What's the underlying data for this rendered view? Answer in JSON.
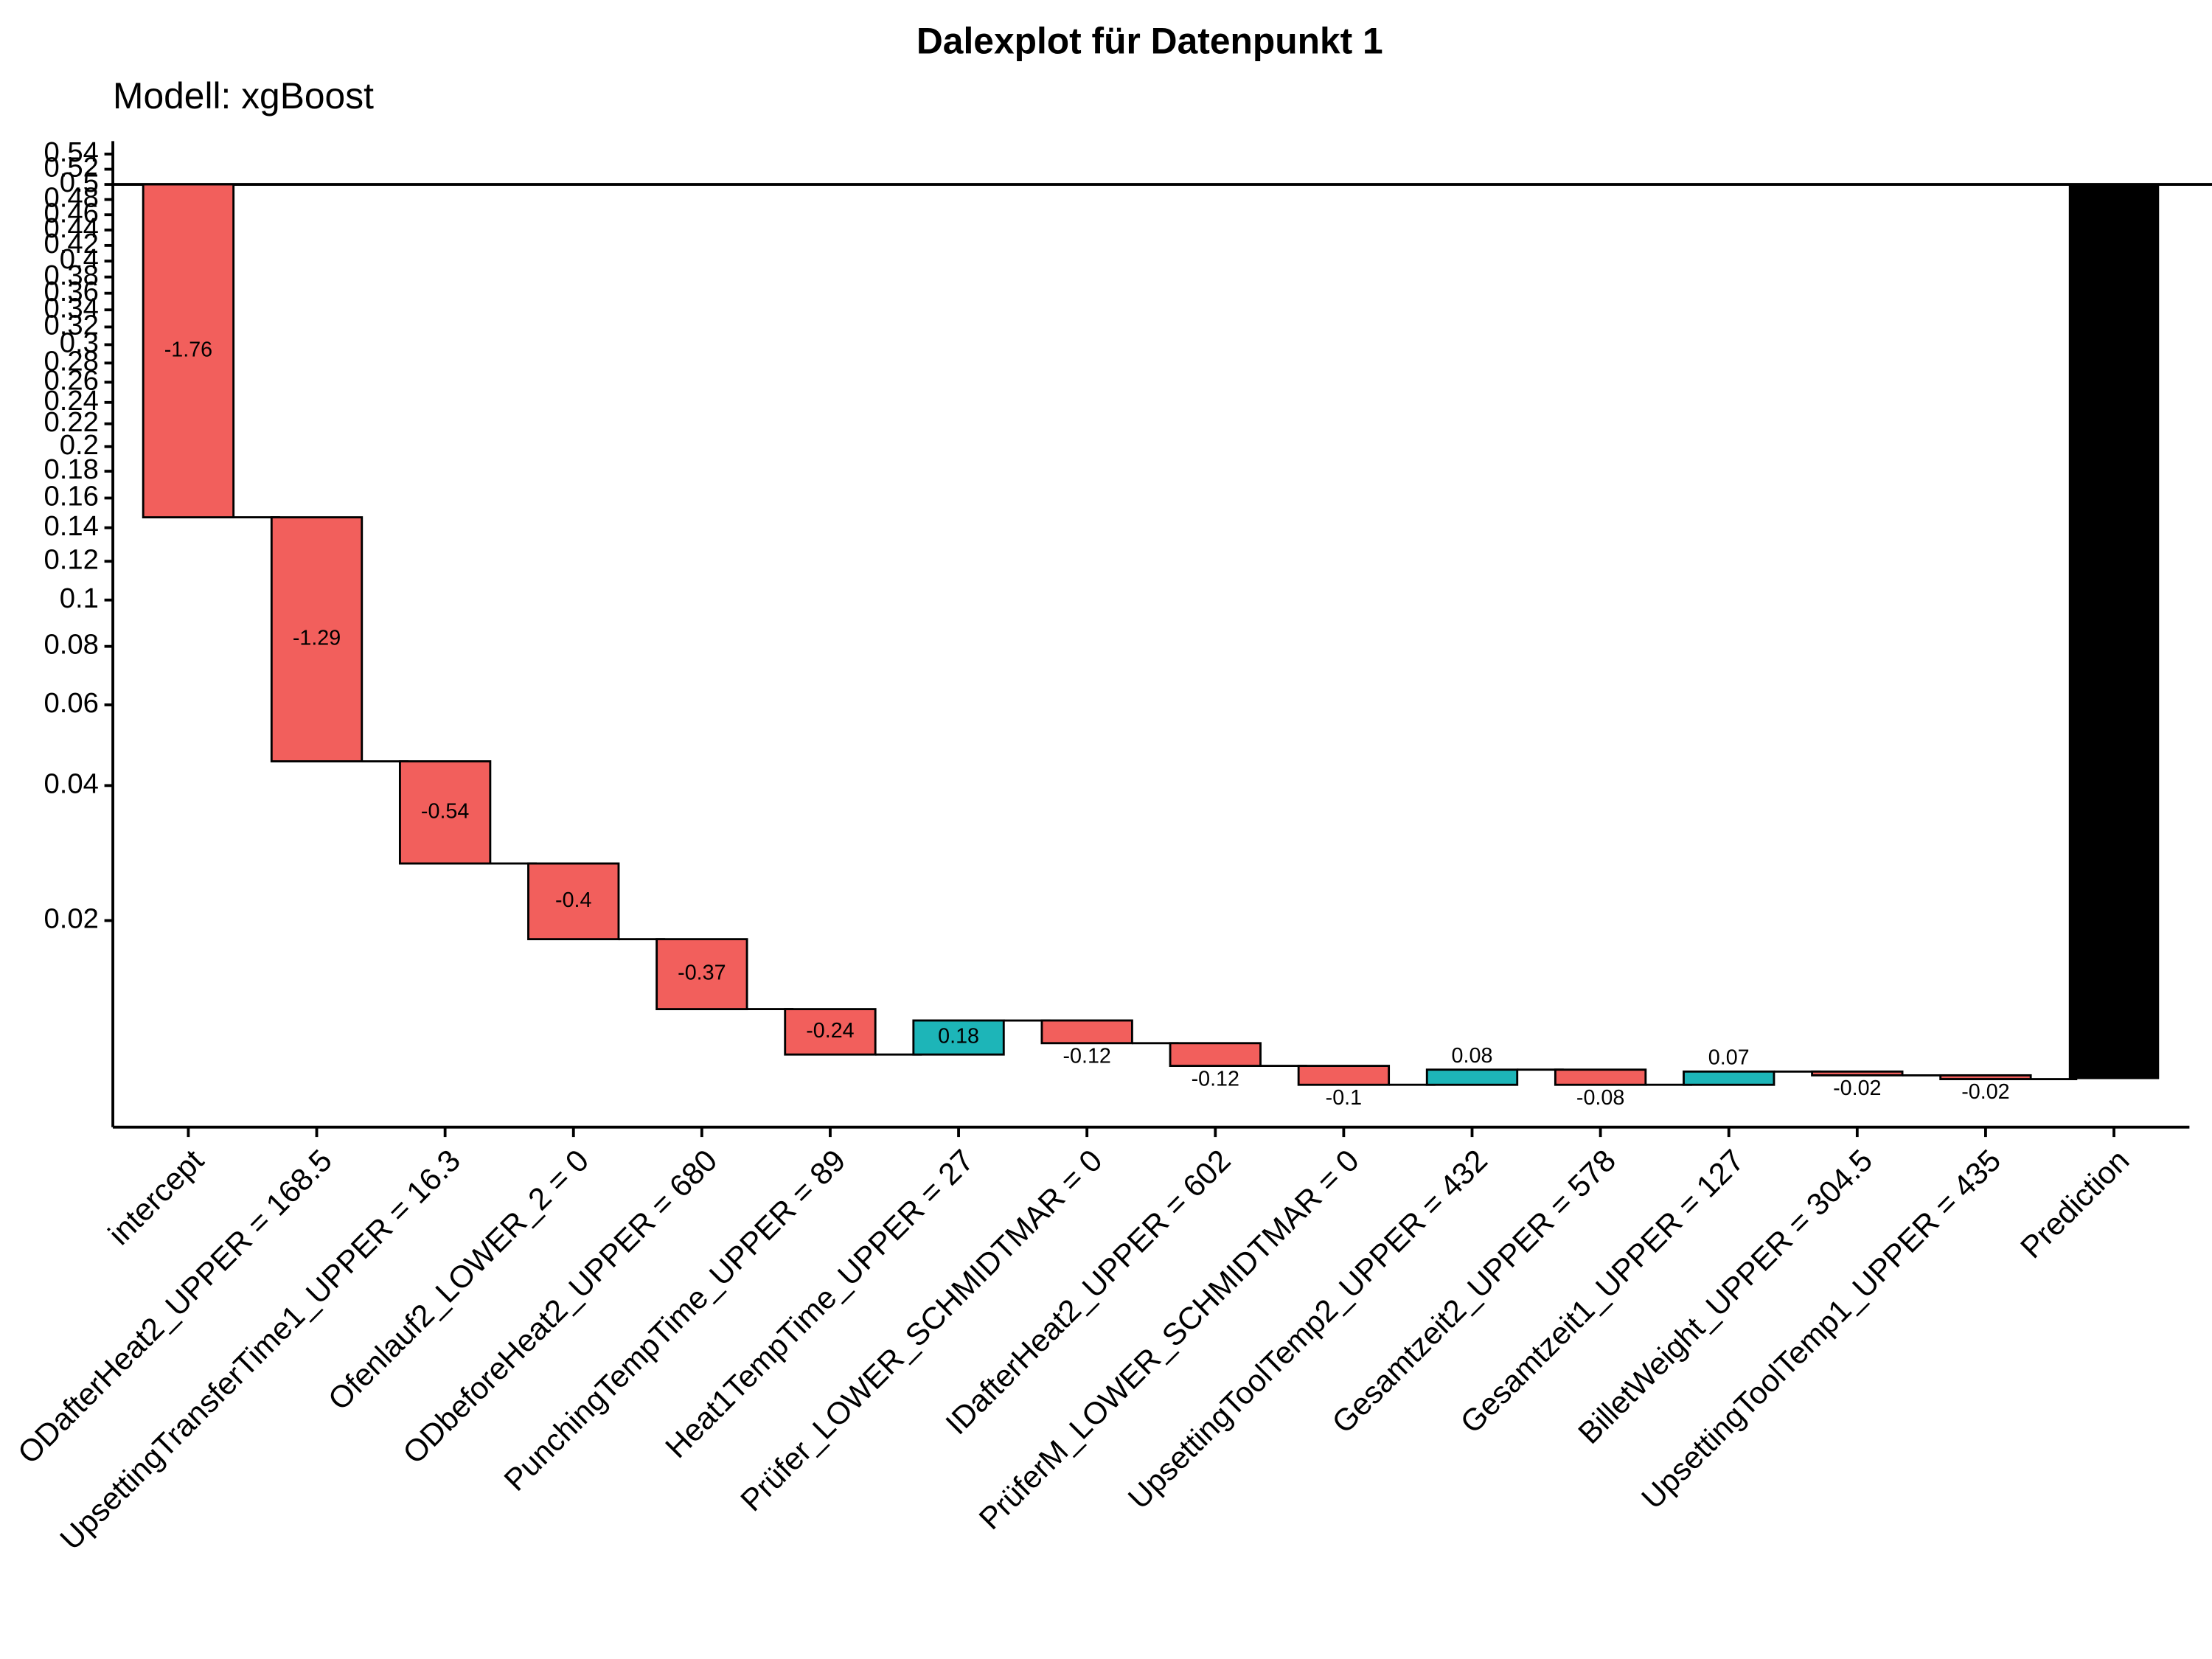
{
  "chart_data": {
    "type": "waterfall",
    "title": "Dalexplot für Datenpunkt 1",
    "subtitle": "Modell: xgBoost",
    "categories": [
      "intercept",
      "ODafterHeat2_UPPER = 168.5",
      "UpsettingTransferTime1_UPPER = 16.3",
      "Ofenlauf2_LOWER_2 = 0",
      "ODbeforeHeat2_UPPER = 680",
      "PunchingTempTime_UPPER = 89",
      "Heat1TempTime_UPPER = 27",
      "Prüfer_LOWER_SCHMIDTMAR = 0",
      "IDafterHeat2_UPPER = 602",
      "PrüferM_LOWER_SCHMIDTMAR = 0",
      "UpsettingToolTemp2_UPPER = 432",
      "Gesamtzeit2_UPPER = 578",
      "Gesamtzeit1_UPPER = 127",
      "BilletWeight_UPPER = 304.5",
      "UpsettingToolTemp1_UPPER = 435"
    ],
    "values": [
      -1.76,
      -1.29,
      -0.54,
      -0.4,
      -0.37,
      -0.24,
      0.18,
      -0.12,
      -0.12,
      -0.1,
      0.08,
      -0.08,
      0.07,
      -0.02,
      -0.02
    ],
    "total": {
      "label": "Prediction",
      "value": -4.73
    },
    "increase_color": "#1db5b8",
    "decrease_color": "#f25f5c",
    "total_color": "#000000",
    "yscale": "logit",
    "baseline": 0.5,
    "ylim": [
      0.0068,
      0.557
    ],
    "yticks": [
      0.02,
      0.04,
      0.06,
      0.08,
      0.1,
      0.12,
      0.14,
      0.16,
      0.18,
      0.2,
      0.22,
      0.24,
      0.26,
      0.28,
      0.3,
      0.32,
      0.34,
      0.36,
      0.38,
      0.4,
      0.42,
      0.44,
      0.46,
      0.48,
      0.5,
      0.52,
      0.54
    ]
  }
}
